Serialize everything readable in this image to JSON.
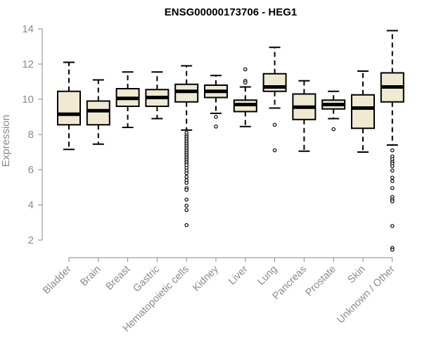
{
  "chart_data": {
    "type": "boxplot",
    "title": "ENSG00000173706 - HEG1",
    "xlabel": "",
    "ylabel": "Expression",
    "ylim": [
      1.0,
      14.0
    ],
    "yticks": [
      "2",
      "4",
      "6",
      "8",
      "10",
      "12",
      "14"
    ],
    "box_fill": "#efe9d2",
    "categories": [
      "Bladder",
      "Brain",
      "Breast",
      "Gastric",
      "Hematopoietic cells",
      "Kidney",
      "Liver",
      "Lung",
      "Pancreas",
      "Prostate",
      "Skin",
      "Unknown / Other"
    ],
    "boxes": [
      {
        "name": "Bladder",
        "whisker_low": 7.15,
        "q1": 8.55,
        "median": 9.15,
        "q3": 10.45,
        "whisker_high": 12.1,
        "outliers": []
      },
      {
        "name": "Brain",
        "whisker_low": 7.45,
        "q1": 8.55,
        "median": 9.35,
        "q3": 9.9,
        "whisker_high": 11.1,
        "outliers": []
      },
      {
        "name": "Breast",
        "whisker_low": 8.4,
        "q1": 9.6,
        "median": 10.05,
        "q3": 10.6,
        "whisker_high": 11.55,
        "outliers": []
      },
      {
        "name": "Gastric",
        "whisker_low": 8.9,
        "q1": 9.6,
        "median": 10.1,
        "q3": 10.55,
        "whisker_high": 11.55,
        "outliers": []
      },
      {
        "name": "Hematopoietic cells",
        "whisker_low": 8.25,
        "q1": 9.85,
        "median": 10.45,
        "q3": 10.85,
        "whisker_high": 11.9,
        "outliers": [
          8.1,
          7.95,
          7.85,
          7.75,
          7.65,
          7.55,
          7.45,
          7.35,
          7.25,
          7.15,
          7.05,
          6.95,
          6.85,
          6.75,
          6.65,
          6.55,
          6.45,
          6.35,
          6.25,
          6.1,
          5.95,
          5.8,
          5.6,
          5.4,
          5.25,
          4.95,
          4.85,
          4.3,
          3.95,
          3.7,
          2.85
        ]
      },
      {
        "name": "Kidney",
        "whisker_low": 9.2,
        "q1": 10.1,
        "median": 10.45,
        "q3": 10.8,
        "whisker_high": 11.35,
        "outliers": [
          9.0,
          8.45
        ]
      },
      {
        "name": "Liver",
        "whisker_low": 8.45,
        "q1": 9.3,
        "median": 9.7,
        "q3": 9.95,
        "whisker_high": 10.7,
        "outliers": [
          11.7,
          11.05,
          10.95
        ]
      },
      {
        "name": "Lung",
        "whisker_low": 9.5,
        "q1": 10.45,
        "median": 10.7,
        "q3": 11.45,
        "whisker_high": 12.95,
        "outliers": [
          8.55,
          7.1
        ]
      },
      {
        "name": "Pancreas",
        "whisker_low": 7.05,
        "q1": 8.85,
        "median": 9.55,
        "q3": 10.3,
        "whisker_high": 11.05,
        "outliers": []
      },
      {
        "name": "Prostate",
        "whisker_low": 8.9,
        "q1": 9.45,
        "median": 9.7,
        "q3": 9.95,
        "whisker_high": 10.45,
        "outliers": [
          8.3
        ]
      },
      {
        "name": "Skin",
        "whisker_low": 7.0,
        "q1": 8.35,
        "median": 9.5,
        "q3": 10.25,
        "whisker_high": 11.6,
        "outliers": []
      },
      {
        "name": "Unknown / Other",
        "whisker_low": 7.4,
        "q1": 9.85,
        "median": 10.7,
        "q3": 11.5,
        "whisker_high": 13.9,
        "outliers": [
          7.1,
          6.75,
          6.6,
          6.45,
          6.35,
          6.2,
          5.95,
          5.55,
          5.35,
          4.95,
          4.45,
          4.3,
          4.2,
          2.8,
          1.55,
          1.45
        ]
      }
    ]
  }
}
